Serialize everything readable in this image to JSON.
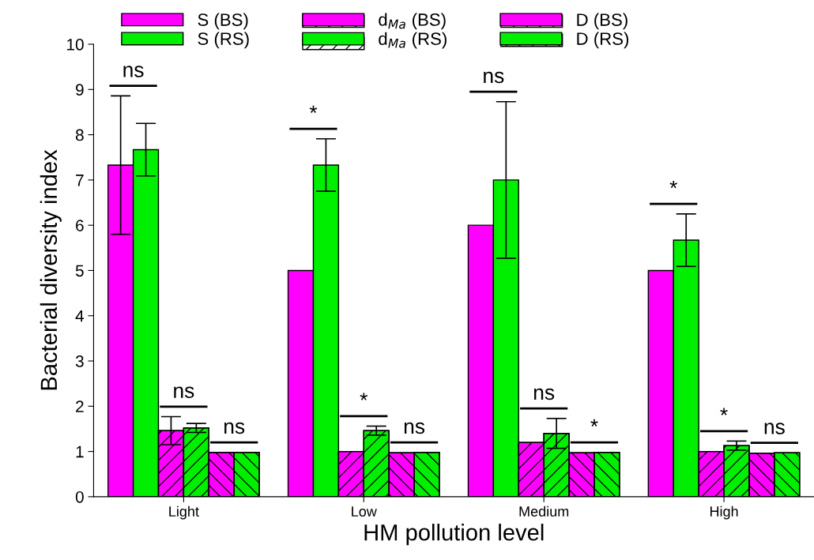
{
  "chart_data": {
    "type": "bar",
    "xlabel": "HM pollution level",
    "ylabel": "Bacterial diversity index",
    "categories": [
      "Light",
      "Low",
      "Medium",
      "High"
    ],
    "series": [
      {
        "name": "S (BS)",
        "color": "#ff00ff",
        "values": [
          7.33,
          5.0,
          6.0,
          5.0
        ],
        "errors": [
          1.53,
          null,
          null,
          null
        ]
      },
      {
        "name": "S (RS)",
        "color": "#00ee00",
        "values": [
          7.67,
          7.33,
          7.0,
          5.67
        ],
        "errors": [
          0.58,
          0.58,
          1.73,
          0.58
        ]
      },
      {
        "name": "d$_{Ma}$ (BS)",
        "color": "#ff00ff",
        "values": [
          1.46,
          1.0,
          1.2,
          1.0
        ],
        "errors": [
          0.31,
          null,
          null,
          null
        ]
      },
      {
        "name": "d$_{Ma}$ (RS)",
        "color": "#00ee00",
        "values": [
          1.52,
          1.46,
          1.4,
          1.13
        ],
        "errors": [
          0.1,
          0.1,
          0.33,
          0.1
        ]
      },
      {
        "name": "D (BS)",
        "color": "#ff00ff",
        "values": [
          0.98,
          0.97,
          0.97,
          0.96
        ]
      },
      {
        "name": "D (RS)",
        "color": "#00ee00",
        "values": [
          0.98,
          0.98,
          0.98,
          0.97
        ]
      }
    ],
    "ylim": [
      0,
      10
    ],
    "yticks": [
      0,
      1,
      2,
      3,
      4,
      5,
      6,
      7,
      8,
      9,
      10
    ],
    "grid": false,
    "legend": "top",
    "annotations": [
      "ns",
      "ns",
      "ns",
      "*",
      "*",
      "ns",
      "ns",
      "ns",
      "*",
      "*",
      "*",
      "ns"
    ]
  }
}
